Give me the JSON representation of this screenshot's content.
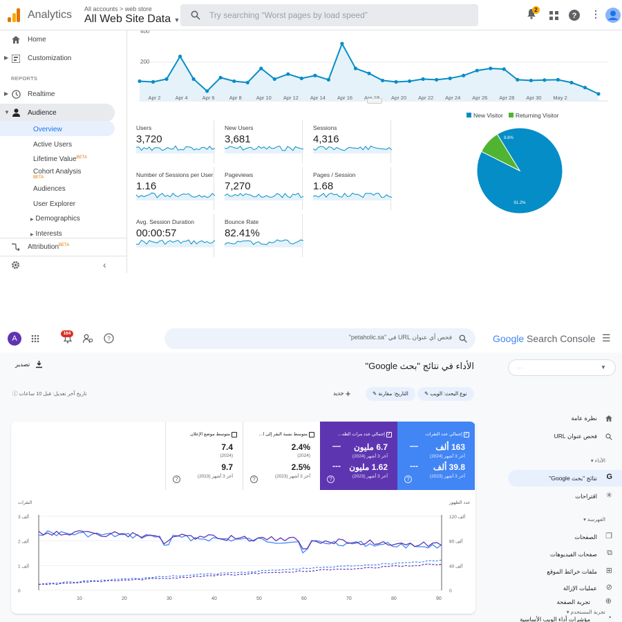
{
  "ga": {
    "app_title": "Analytics",
    "breadcrumb": "All accounts > web store",
    "property": "All Web Site Data",
    "search_placeholder": "Try searching “Worst pages by load speed”",
    "notification_count": "2",
    "sidebar": {
      "home": "Home",
      "customization": "Customization",
      "reports_header": "REPORTS",
      "realtime": "Realtime",
      "audience": "Audience",
      "sub": [
        "Overview",
        "Active Users",
        "Lifetime Value",
        "Cohort Analysis",
        "Audiences",
        "User Explorer",
        "Demographics",
        "Interests"
      ],
      "beta": "BETA",
      "attribution": "Attribution"
    },
    "chart": {
      "y_ticks": [
        "400",
        "200"
      ],
      "x_labels": [
        "Apr 2",
        "Apr 4",
        "Apr 6",
        "Apr 8",
        "Apr 10",
        "Apr 12",
        "Apr 14",
        "Apr 16",
        "Apr 18",
        "Apr 20",
        "Apr 22",
        "Apr 24",
        "Apr 26",
        "Apr 28",
        "Apr 30",
        "May 2"
      ],
      "values": [
        110,
        105,
        125,
        285,
        125,
        40,
        135,
        110,
        100,
        200,
        125,
        160,
        130,
        150,
        120,
        375,
        200,
        165,
        115,
        105,
        110,
        125,
        120,
        130,
        150,
        185,
        200,
        195,
        120,
        115,
        118,
        120,
        100,
        65,
        20
      ]
    },
    "metrics": [
      {
        "label": "Users",
        "value": "3,720"
      },
      {
        "label": "New Users",
        "value": "3,681"
      },
      {
        "label": "Sessions",
        "value": "4,316"
      },
      {
        "label": "Number of Sessions per User",
        "value": "1.16"
      },
      {
        "label": "Pageviews",
        "value": "7,270"
      },
      {
        "label": "Pages / Session",
        "value": "1.68"
      },
      {
        "label": "Avg. Session Duration",
        "value": "00:00:57"
      },
      {
        "label": "Bounce Rate",
        "value": "82.41%"
      }
    ],
    "pie": {
      "legend": [
        {
          "name": "New Visitor",
          "color": "#058dc7"
        },
        {
          "name": "Returning Visitor",
          "color": "#50b432"
        }
      ],
      "slices": [
        {
          "name": "New Visitor",
          "pct": 91.2,
          "label": "91.2%"
        },
        {
          "name": "Returning Visitor",
          "pct": 8.8,
          "label": "8.8%"
        }
      ]
    }
  },
  "gsc": {
    "avatar_letter": "A",
    "notification_count": "164",
    "search_placeholder": "فحص أي عنوان URL في \"petaholic.sa\"",
    "logo_google": "Google",
    "logo_product": "Search Console",
    "property_value": "…",
    "page_title": "الأداء في نتائج \"بحث Google\"",
    "export_label": "تصدير",
    "filter_type": "نوع البحث: الويب",
    "filter_date": "التاريخ: مقارنة",
    "new_label": "جديد",
    "last_update": "تاريخ آخر تعديل: قبل 10 ساعات",
    "nav": {
      "overview": "نظرة عامة",
      "url_inspect": "فحص عنوان URL",
      "performance_header": "الأداء",
      "search_results": "نتائج \"بحث Google\"",
      "suggestions": "اقتراحات",
      "indexing_header": "الفهرسة",
      "pages": "الصفحات",
      "video_pages": "صفحات الفيديوهات",
      "sitemaps": "ملفات خرائط الموقع",
      "removals": "عمليات الإزالة",
      "experience_header": "تجربة المستخدم",
      "page_experience": "تجربة الصفحة",
      "core_web_vitals": "مؤشرات أداء الويب الأساسية"
    },
    "metric_cards": [
      {
        "title": "إجمالي عدد النقرات",
        "v1": "163 ألف",
        "p1": "آخر 3 أشهر (2024)",
        "v2": "39.8 ألف",
        "p2": "آخر 3 أشهر (2023)",
        "bg": "#4285f4"
      },
      {
        "title": "إجمالي عدد مرات الظه…",
        "v1": "6.7 مليون",
        "p1": "آخر 3 أشهر (2024)",
        "v2": "1.62 مليون",
        "p2": "آخر 3 أشهر (2023)",
        "bg": "#5e35b1"
      },
      {
        "title": "متوسط نسبة النقر إلى ا…",
        "v1": "2.4%",
        "p1": "(2024)",
        "v2": "2.5%",
        "p2": "آخر 3 أشهر (2023)",
        "bg": "#ffffff"
      },
      {
        "title": "متوسط موضع الإعلان",
        "v1": "7.4",
        "p1": "(2024)",
        "v2": "9.7",
        "p2": "آخر 3 أشهر (2023)",
        "bg": "#ffffff"
      }
    ],
    "chart": {
      "left_axis_title": "النقرات",
      "right_axis_title": "عدد الظهور",
      "left_ticks": [
        "3 ألف",
        "2 ألف",
        "1 ألف",
        "0"
      ],
      "right_ticks": [
        "120 ألف",
        "80 ألف",
        "40 ألف",
        "0"
      ],
      "x_ticks": [
        "10",
        "20",
        "30",
        "40",
        "50",
        "60",
        "70",
        "80",
        "90"
      ]
    }
  }
}
